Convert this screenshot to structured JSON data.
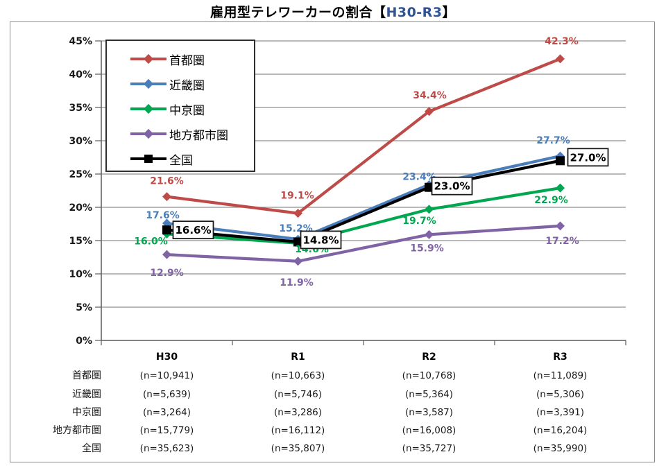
{
  "title": {
    "prefix": "雇用型テレワーカーの割合【",
    "highlight": "H30-R3",
    "suffix": "】",
    "highlight_color": "#2F5496"
  },
  "chart_data": {
    "type": "line",
    "title": "雇用型テレワーカーの割合【H30-R3】",
    "categories": [
      "H30",
      "R1",
      "R2",
      "R3"
    ],
    "xlabel": "",
    "ylabel": "",
    "ylim": [
      0,
      45
    ],
    "ytick_step": 5,
    "ytick_suffix": "%",
    "grid": true,
    "legend_position": "top-left-inside",
    "series": [
      {
        "id": "shutoken",
        "name": "首都圏",
        "color": "#BE4B48",
        "marker": "diamond",
        "values": [
          21.6,
          19.1,
          34.4,
          42.3
        ],
        "labels": [
          "21.6%",
          "19.1%",
          "34.4%",
          "42.3%"
        ],
        "label_style": "plain",
        "label_offsets": [
          [
            0,
            -23
          ],
          [
            -1,
            -26
          ],
          [
            1,
            -24
          ],
          [
            2,
            -26
          ]
        ],
        "label_hidden": [
          false,
          false,
          false,
          false
        ]
      },
      {
        "id": "kinkiken",
        "name": "近畿圏",
        "color": "#4A7EBB",
        "marker": "diamond",
        "values": [
          17.6,
          15.2,
          23.4,
          27.7
        ],
        "labels": [
          "17.6%",
          "15.2%",
          "23.4%",
          "27.7%"
        ],
        "label_style": "plain",
        "label_offsets": [
          [
            -6,
            -12
          ],
          [
            -3,
            -16
          ],
          [
            -14,
            -12
          ],
          [
            -10,
            -23
          ]
        ],
        "label_hidden": [
          false,
          false,
          false,
          false
        ]
      },
      {
        "id": "chukyoken",
        "name": "中京圏",
        "color": "#00A650",
        "marker": "diamond",
        "values": [
          16.0,
          14.6,
          19.7,
          22.9
        ],
        "labels": [
          "16.0%",
          "14.6%",
          "19.7%",
          "22.9%"
        ],
        "label_style": "plain",
        "label_offsets": [
          [
            -23,
            10
          ],
          [
            20,
            8
          ],
          [
            -14,
            16
          ],
          [
            -13,
            17
          ]
        ],
        "label_hidden": [
          false,
          true,
          false,
          false
        ]
      },
      {
        "id": "chihoutoshiken",
        "name": "地方都市圏",
        "color": "#7F63A4",
        "marker": "diamond",
        "values": [
          12.9,
          11.9,
          15.9,
          17.2
        ],
        "labels": [
          "12.9%",
          "11.9%",
          "15.9%",
          "17.2%"
        ],
        "label_style": "plain",
        "label_offsets": [
          [
            0,
            26
          ],
          [
            -2,
            30
          ],
          [
            -3,
            19
          ],
          [
            3,
            21
          ]
        ],
        "label_hidden": [
          false,
          false,
          false,
          false
        ]
      },
      {
        "id": "zenkoku",
        "name": "全国",
        "color": "#000000",
        "marker": "square",
        "values": [
          16.6,
          14.8,
          23.0,
          27.0
        ],
        "labels": [
          "16.6%",
          "14.8%",
          "23.0%",
          "27.0%"
        ],
        "label_style": "boxed",
        "label_offsets": [
          [
            38,
            0
          ],
          [
            33,
            -3
          ],
          [
            33,
            -2
          ],
          [
            40,
            -5
          ]
        ],
        "label_hidden": [
          false,
          false,
          false,
          false
        ]
      }
    ]
  },
  "table": {
    "row_labels": [
      "首都圏",
      "近畿圏",
      "中京圏",
      "地方都市圏",
      "全国"
    ],
    "columns": [
      "H30",
      "R1",
      "R2",
      "R3"
    ],
    "cells": [
      [
        "(n=10,941)",
        "(n=10,663)",
        "(n=10,768)",
        "(n=11,089)"
      ],
      [
        "(n=5,639)",
        "(n=5,746)",
        "(n=5,364)",
        "(n=5,306)"
      ],
      [
        "(n=3,264)",
        "(n=3,286)",
        "(n=3,587)",
        "(n=3,391)"
      ],
      [
        "(n=15,779)",
        "(n=16,112)",
        "(n=16,008)",
        "(n=16,204)"
      ],
      [
        "(n=35,623)",
        "(n=35,807)",
        "(n=35,727)",
        "(n=35,990)"
      ]
    ]
  }
}
